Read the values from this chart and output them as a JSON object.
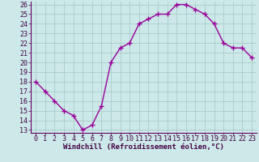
{
  "x": [
    0,
    1,
    2,
    3,
    4,
    5,
    6,
    7,
    8,
    9,
    10,
    11,
    12,
    13,
    14,
    15,
    16,
    17,
    18,
    19,
    20,
    21,
    22,
    23
  ],
  "y": [
    18.0,
    17.0,
    16.0,
    15.0,
    14.5,
    13.0,
    13.5,
    15.5,
    20.0,
    21.5,
    22.0,
    24.0,
    24.5,
    25.0,
    25.0,
    26.0,
    26.0,
    25.5,
    25.0,
    24.0,
    22.0,
    21.5,
    21.5,
    20.5
  ],
  "line_color": "#990099",
  "marker": "+",
  "marker_size": 4,
  "xlabel": "Windchill (Refroidissement éolien,°C)",
  "xlabel_fontsize": 6.5,
  "ylim": [
    13,
    26
  ],
  "xlim": [
    -0.5,
    23.5
  ],
  "yticks": [
    13,
    14,
    15,
    16,
    17,
    18,
    19,
    20,
    21,
    22,
    23,
    24,
    25,
    26
  ],
  "xticks": [
    0,
    1,
    2,
    3,
    4,
    5,
    6,
    7,
    8,
    9,
    10,
    11,
    12,
    13,
    14,
    15,
    16,
    17,
    18,
    19,
    20,
    21,
    22,
    23
  ],
  "bg_color": "#cce8e8",
  "grid_color": "#aacccc",
  "spine_color": "#660066",
  "tick_fontsize": 6,
  "line_width": 1.0,
  "marker_edge_width": 1.0
}
